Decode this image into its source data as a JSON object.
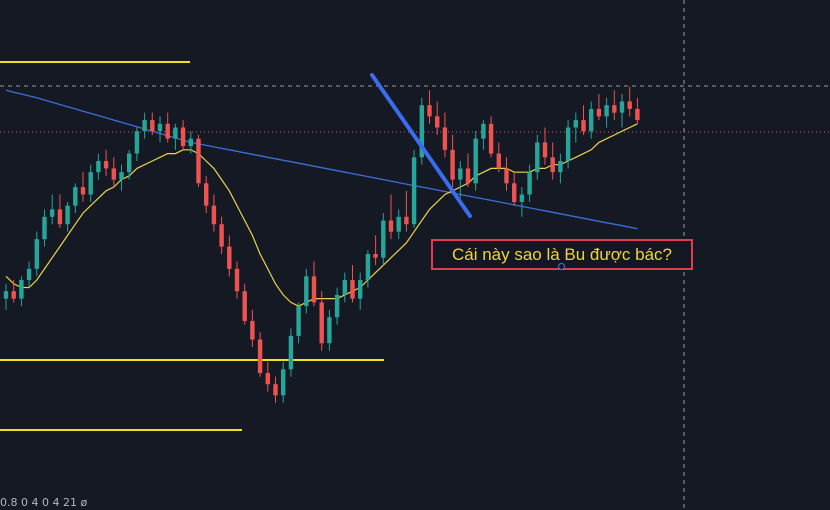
{
  "annotation": {
    "text": "Cái này sao là Bu được bác?"
  },
  "footer": {
    "text": "0.8 0 4 0 4  21 ø"
  },
  "colors": {
    "background": "#151924",
    "up_candle": "#26a69a",
    "down_candle": "#ef5350",
    "ma_fast": "#e8d44c",
    "ma_slow": "#3a6fd8",
    "level_line": "#f0e020",
    "trend_line": "#3b6cf0",
    "annotation_border": "#e53b4e",
    "annotation_text": "#f0d43a",
    "crosshair": "#c8c8c8",
    "price_line": "#e05260"
  },
  "chart_data": {
    "type": "candlestick",
    "title": "",
    "xlabel": "",
    "ylabel": "",
    "ylim": [
      0,
      100
    ],
    "grid": false,
    "price_scale_visible": false,
    "candles": [
      {
        "o": 38,
        "h": 42,
        "l": 35,
        "c": 40
      },
      {
        "o": 40,
        "h": 43,
        "l": 37,
        "c": 38
      },
      {
        "o": 38,
        "h": 44,
        "l": 36,
        "c": 43
      },
      {
        "o": 43,
        "h": 48,
        "l": 41,
        "c": 46
      },
      {
        "o": 46,
        "h": 56,
        "l": 44,
        "c": 54
      },
      {
        "o": 54,
        "h": 62,
        "l": 52,
        "c": 60
      },
      {
        "o": 60,
        "h": 66,
        "l": 58,
        "c": 62
      },
      {
        "o": 62,
        "h": 66,
        "l": 57,
        "c": 58
      },
      {
        "o": 58,
        "h": 64,
        "l": 56,
        "c": 63
      },
      {
        "o": 63,
        "h": 69,
        "l": 61,
        "c": 68
      },
      {
        "o": 68,
        "h": 72,
        "l": 64,
        "c": 66
      },
      {
        "o": 66,
        "h": 74,
        "l": 64,
        "c": 72
      },
      {
        "o": 72,
        "h": 77,
        "l": 70,
        "c": 75
      },
      {
        "o": 75,
        "h": 78,
        "l": 71,
        "c": 73
      },
      {
        "o": 73,
        "h": 76,
        "l": 68,
        "c": 70
      },
      {
        "o": 70,
        "h": 74,
        "l": 67,
        "c": 72
      },
      {
        "o": 72,
        "h": 78,
        "l": 70,
        "c": 77
      },
      {
        "o": 77,
        "h": 84,
        "l": 75,
        "c": 83
      },
      {
        "o": 83,
        "h": 88,
        "l": 81,
        "c": 86
      },
      {
        "o": 86,
        "h": 88,
        "l": 82,
        "c": 83
      },
      {
        "o": 83,
        "h": 87,
        "l": 80,
        "c": 85
      },
      {
        "o": 85,
        "h": 88,
        "l": 80,
        "c": 81
      },
      {
        "o": 81,
        "h": 85,
        "l": 78,
        "c": 84
      },
      {
        "o": 84,
        "h": 86,
        "l": 78,
        "c": 79
      },
      {
        "o": 79,
        "h": 83,
        "l": 77,
        "c": 81
      },
      {
        "o": 81,
        "h": 82,
        "l": 68,
        "c": 69
      },
      {
        "o": 69,
        "h": 71,
        "l": 61,
        "c": 63
      },
      {
        "o": 63,
        "h": 66,
        "l": 56,
        "c": 58
      },
      {
        "o": 58,
        "h": 60,
        "l": 50,
        "c": 52
      },
      {
        "o": 52,
        "h": 55,
        "l": 44,
        "c": 46
      },
      {
        "o": 46,
        "h": 48,
        "l": 38,
        "c": 40
      },
      {
        "o": 40,
        "h": 42,
        "l": 31,
        "c": 32
      },
      {
        "o": 32,
        "h": 35,
        "l": 25,
        "c": 27
      },
      {
        "o": 27,
        "h": 29,
        "l": 17,
        "c": 18
      },
      {
        "o": 18,
        "h": 21,
        "l": 13,
        "c": 15
      },
      {
        "o": 15,
        "h": 17,
        "l": 10,
        "c": 12
      },
      {
        "o": 12,
        "h": 21,
        "l": 10,
        "c": 19
      },
      {
        "o": 19,
        "h": 30,
        "l": 17,
        "c": 28
      },
      {
        "o": 28,
        "h": 37,
        "l": 26,
        "c": 36
      },
      {
        "o": 36,
        "h": 46,
        "l": 34,
        "c": 44
      },
      {
        "o": 44,
        "h": 48,
        "l": 36,
        "c": 37
      },
      {
        "o": 37,
        "h": 40,
        "l": 24,
        "c": 26
      },
      {
        "o": 26,
        "h": 35,
        "l": 24,
        "c": 33
      },
      {
        "o": 33,
        "h": 41,
        "l": 31,
        "c": 39
      },
      {
        "o": 39,
        "h": 45,
        "l": 37,
        "c": 43
      },
      {
        "o": 43,
        "h": 47,
        "l": 37,
        "c": 38
      },
      {
        "o": 38,
        "h": 45,
        "l": 35,
        "c": 43
      },
      {
        "o": 43,
        "h": 51,
        "l": 41,
        "c": 50
      },
      {
        "o": 50,
        "h": 55,
        "l": 47,
        "c": 49
      },
      {
        "o": 49,
        "h": 61,
        "l": 47,
        "c": 59
      },
      {
        "o": 59,
        "h": 66,
        "l": 54,
        "c": 56
      },
      {
        "o": 56,
        "h": 62,
        "l": 54,
        "c": 60
      },
      {
        "o": 60,
        "h": 67,
        "l": 56,
        "c": 58
      },
      {
        "o": 58,
        "h": 78,
        "l": 57,
        "c": 76
      },
      {
        "o": 76,
        "h": 92,
        "l": 74,
        "c": 90
      },
      {
        "o": 90,
        "h": 94,
        "l": 85,
        "c": 87
      },
      {
        "o": 87,
        "h": 91,
        "l": 82,
        "c": 84
      },
      {
        "o": 84,
        "h": 88,
        "l": 76,
        "c": 78
      },
      {
        "o": 78,
        "h": 82,
        "l": 68,
        "c": 70
      },
      {
        "o": 70,
        "h": 75,
        "l": 65,
        "c": 73
      },
      {
        "o": 73,
        "h": 77,
        "l": 68,
        "c": 69
      },
      {
        "o": 69,
        "h": 83,
        "l": 67,
        "c": 81
      },
      {
        "o": 81,
        "h": 86,
        "l": 78,
        "c": 85
      },
      {
        "o": 85,
        "h": 87,
        "l": 76,
        "c": 77
      },
      {
        "o": 77,
        "h": 80,
        "l": 72,
        "c": 73
      },
      {
        "o": 73,
        "h": 76,
        "l": 67,
        "c": 69
      },
      {
        "o": 69,
        "h": 72,
        "l": 63,
        "c": 64
      },
      {
        "o": 64,
        "h": 68,
        "l": 60,
        "c": 66
      },
      {
        "o": 66,
        "h": 74,
        "l": 64,
        "c": 72
      },
      {
        "o": 72,
        "h": 82,
        "l": 70,
        "c": 80
      },
      {
        "o": 80,
        "h": 84,
        "l": 74,
        "c": 76
      },
      {
        "o": 76,
        "h": 80,
        "l": 70,
        "c": 72
      },
      {
        "o": 72,
        "h": 77,
        "l": 69,
        "c": 75
      },
      {
        "o": 75,
        "h": 86,
        "l": 73,
        "c": 84
      },
      {
        "o": 84,
        "h": 88,
        "l": 80,
        "c": 86
      },
      {
        "o": 86,
        "h": 90,
        "l": 82,
        "c": 83
      },
      {
        "o": 83,
        "h": 91,
        "l": 81,
        "c": 89
      },
      {
        "o": 89,
        "h": 93,
        "l": 86,
        "c": 87
      },
      {
        "o": 87,
        "h": 92,
        "l": 84,
        "c": 90
      },
      {
        "o": 90,
        "h": 94,
        "l": 86,
        "c": 88
      },
      {
        "o": 88,
        "h": 93,
        "l": 84,
        "c": 91
      },
      {
        "o": 91,
        "h": 95,
        "l": 87,
        "c": 89
      },
      {
        "o": 89,
        "h": 92,
        "l": 85,
        "c": 86
      }
    ],
    "ma_fast": [
      44,
      42,
      41,
      41,
      43,
      46,
      49,
      52,
      55,
      58,
      61,
      63,
      65,
      67,
      68,
      70,
      71,
      73,
      74,
      75,
      76,
      77,
      77,
      78,
      78,
      77,
      75,
      73,
      70,
      67,
      63,
      59,
      55,
      50,
      46,
      42,
      39,
      37,
      36,
      37,
      38,
      38,
      38,
      38,
      39,
      40,
      41,
      43,
      45,
      47,
      49,
      51,
      53,
      56,
      59,
      62,
      64,
      66,
      67,
      68,
      69,
      71,
      72,
      73,
      73,
      73,
      72,
      72,
      72,
      73,
      73,
      74,
      74,
      75,
      76,
      77,
      78,
      80,
      81,
      82,
      83,
      84,
      85
    ],
    "ma_slow": [
      94,
      93.5,
      93,
      92.5,
      92,
      91.4,
      90.8,
      90.2,
      89.6,
      89,
      88.4,
      87.8,
      87.2,
      86.6,
      86,
      85.4,
      84.8,
      84.2,
      83.6,
      83,
      82.4,
      81.8,
      81.2,
      80.6,
      80,
      79.6,
      79.2,
      78.8,
      78.4,
      78,
      77.6,
      77.2,
      76.8,
      76.4,
      76,
      75.6,
      75.2,
      74.8,
      74.4,
      74,
      73.6,
      73.2,
      72.8,
      72.4,
      72,
      71.6,
      71.2,
      70.8,
      70.4,
      70,
      69.6,
      69.2,
      68.8,
      68.4,
      68,
      67.6,
      67.2,
      66.8,
      66.4,
      66,
      65.6,
      65.2,
      64.8,
      64.4,
      64,
      63.6,
      63.2,
      62.8,
      62.4,
      62,
      61.6,
      61.2,
      60.8,
      60.4,
      60,
      59.6,
      59.2,
      58.8,
      58.4,
      58,
      57.6,
      57.2,
      56.8
    ]
  }
}
